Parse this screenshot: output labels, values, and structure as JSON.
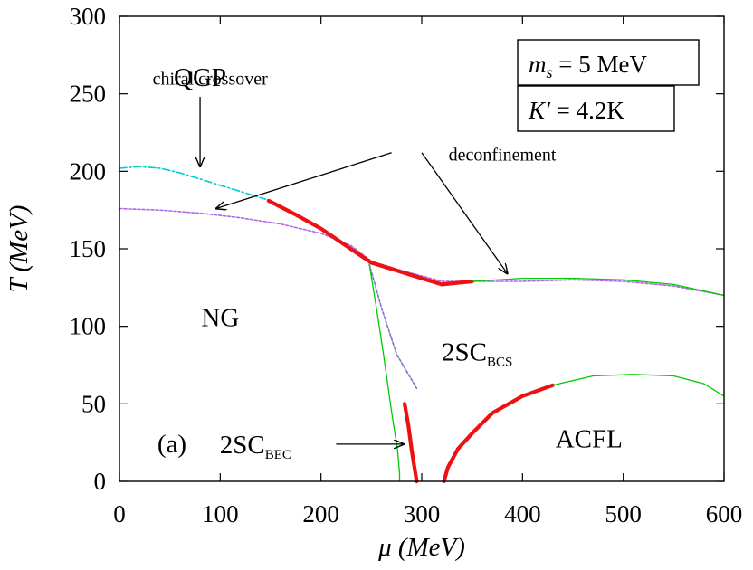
{
  "chart_data": {
    "type": "line",
    "title": "",
    "xlabel": "μ (MeV)",
    "ylabel": "T (MeV)",
    "xlim": [
      0,
      600
    ],
    "ylim": [
      0,
      300
    ],
    "xticks": [
      "0",
      "100",
      "200",
      "300",
      "400",
      "500",
      "600"
    ],
    "yticks": [
      "0",
      "50",
      "100",
      "150",
      "200",
      "250",
      "300"
    ],
    "grid": false,
    "legend": "none",
    "params_box": [
      {
        "lhs_var": "m",
        "lhs_sub": "s",
        "rhs": "= 5 MeV"
      },
      {
        "lhs_var": "K′",
        "lhs_sub": "",
        "rhs": "= 4.2K"
      }
    ],
    "panel_label": "(a)",
    "region_labels": [
      {
        "text": "QGP",
        "sub": "",
        "x": 80,
        "y": 255
      },
      {
        "text": "NG",
        "sub": "",
        "x": 100,
        "y": 100
      },
      {
        "text": "2SC",
        "sub": "BCS",
        "x": 355,
        "y": 78
      },
      {
        "text": "ACFL",
        "sub": "",
        "x": 466,
        "y": 22
      },
      {
        "text": "2SC",
        "sub": "BEC",
        "x": 135,
        "y": 18
      }
    ],
    "annotations": [
      {
        "text": "chiral crossover",
        "x": 90,
        "y": 256,
        "arrows": [
          {
            "from": [
              80,
              248
            ],
            "to": [
              80,
              203
            ]
          }
        ]
      },
      {
        "text": "deconfinement",
        "x": 380,
        "y": 207,
        "arrows": [
          {
            "from": [
              270,
              212
            ],
            "to": [
              96,
              176
            ]
          },
          {
            "from": [
              300,
              212
            ],
            "to": [
              385,
              134
            ]
          }
        ]
      },
      {
        "text": "",
        "x": 0,
        "y": 0,
        "arrows": [
          {
            "from": [
              215,
              24
            ],
            "to": [
              282,
              24
            ]
          }
        ]
      }
    ],
    "series": [
      {
        "style": "cyan-dashdot",
        "color": "#00cccc",
        "x": [
          0,
          20,
          40,
          60,
          80,
          100,
          120,
          140,
          145
        ],
        "y": [
          202,
          203,
          202,
          199,
          195,
          191,
          187,
          183,
          182
        ]
      },
      {
        "style": "violet-dotted",
        "color": "#b266e8",
        "x": [
          0,
          40,
          80,
          120,
          160,
          200,
          230,
          250,
          280,
          320,
          350,
          400,
          450,
          500,
          550,
          600
        ],
        "y": [
          176,
          175,
          173,
          170,
          166,
          160,
          152,
          142,
          136,
          129,
          129,
          129,
          130,
          129,
          126,
          120
        ]
      },
      {
        "style": "violet-dotted",
        "color": "#7777cc",
        "x": [
          248,
          260,
          275,
          295
        ],
        "y": [
          140,
          112,
          82,
          60
        ]
      },
      {
        "style": "red-thick",
        "color": "#ee1111",
        "x": [
          148,
          175,
          200,
          225,
          250,
          270,
          300,
          320,
          350
        ],
        "y": [
          181,
          172,
          163,
          152,
          141,
          137,
          131,
          127,
          129
        ]
      },
      {
        "style": "red-thick",
        "color": "#ee1111",
        "x": [
          283,
          287,
          290,
          293,
          295
        ],
        "y": [
          50,
          35,
          20,
          8,
          0
        ]
      },
      {
        "style": "red-thick",
        "color": "#ee1111",
        "x": [
          322,
          326,
          336,
          350,
          370,
          400,
          430
        ],
        "y": [
          0,
          9,
          21,
          31,
          44,
          55,
          62
        ]
      },
      {
        "style": "green-thin",
        "color": "#00cc00",
        "x": [
          350,
          400,
          450,
          500,
          550,
          600
        ],
        "y": [
          129,
          131,
          131,
          130,
          127,
          120
        ]
      },
      {
        "style": "green-thin",
        "color": "#00cc00",
        "x": [
          248,
          255,
          262,
          270,
          276,
          278,
          278
        ],
        "y": [
          140,
          112,
          82,
          45,
          20,
          5,
          0
        ]
      },
      {
        "style": "green-thin",
        "color": "#00cc00",
        "x": [
          430,
          470,
          510,
          550,
          580,
          600
        ],
        "y": [
          62,
          68,
          69,
          68,
          63,
          55
        ]
      }
    ]
  }
}
